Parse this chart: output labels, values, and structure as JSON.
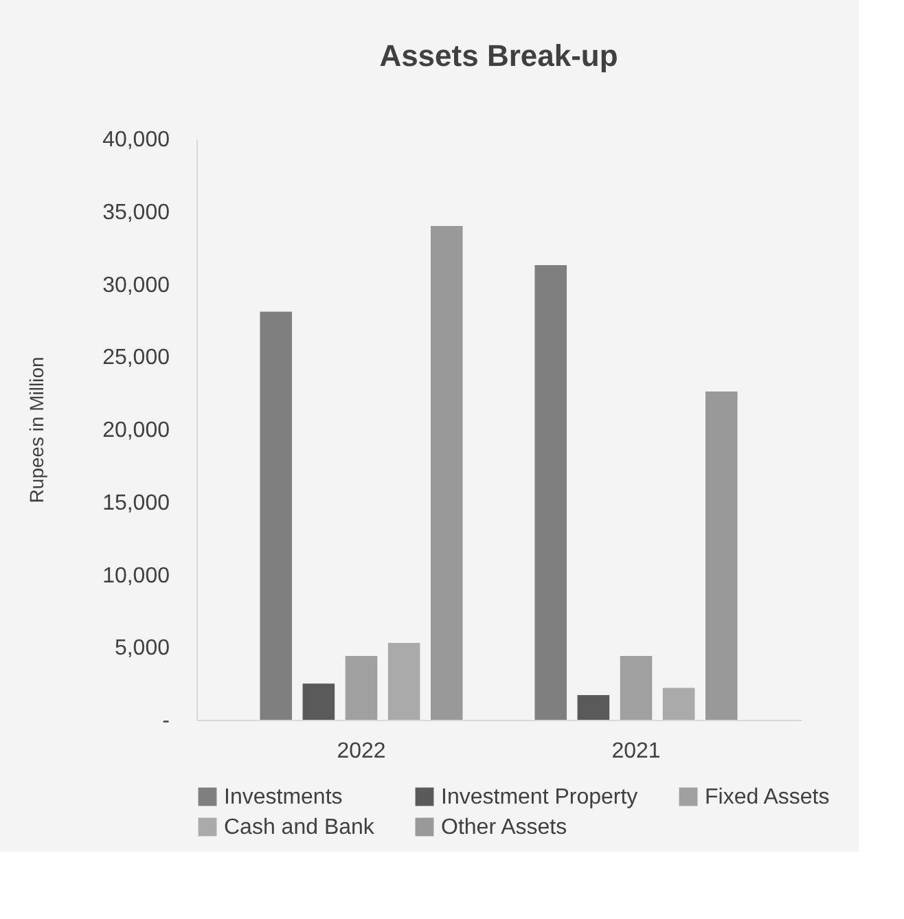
{
  "chart_data": {
    "type": "bar",
    "title": "Assets Break-up",
    "ylabel": "Rupees in Million",
    "categories": [
      "2022",
      "2021"
    ],
    "series": [
      {
        "name": "Investments",
        "color": "#7f7f7f",
        "values": [
          28100,
          31300
        ]
      },
      {
        "name": "Investment Property",
        "color": "#5a5a5a",
        "values": [
          2500,
          1700
        ]
      },
      {
        "name": "Fixed Assets",
        "color": "#a0a0a0",
        "values": [
          4400,
          4400
        ]
      },
      {
        "name": "Cash and Bank",
        "color": "#aaaaaa",
        "values": [
          5300,
          2200
        ]
      },
      {
        "name": "Other Assets",
        "color": "#999999",
        "values": [
          34000,
          22600
        ]
      }
    ],
    "ylim": [
      0,
      40000
    ],
    "yticks": [
      {
        "value": 0,
        "label": "-"
      },
      {
        "value": 5000,
        "label": "5,000"
      },
      {
        "value": 10000,
        "label": "10,000"
      },
      {
        "value": 15000,
        "label": "15,000"
      },
      {
        "value": 20000,
        "label": "20,000"
      },
      {
        "value": 25000,
        "label": "25,000"
      },
      {
        "value": 30000,
        "label": "30,000"
      },
      {
        "value": 35000,
        "label": "35,000"
      },
      {
        "value": 40000,
        "label": "40,000"
      }
    ],
    "grid": false,
    "legend": "bottom"
  }
}
